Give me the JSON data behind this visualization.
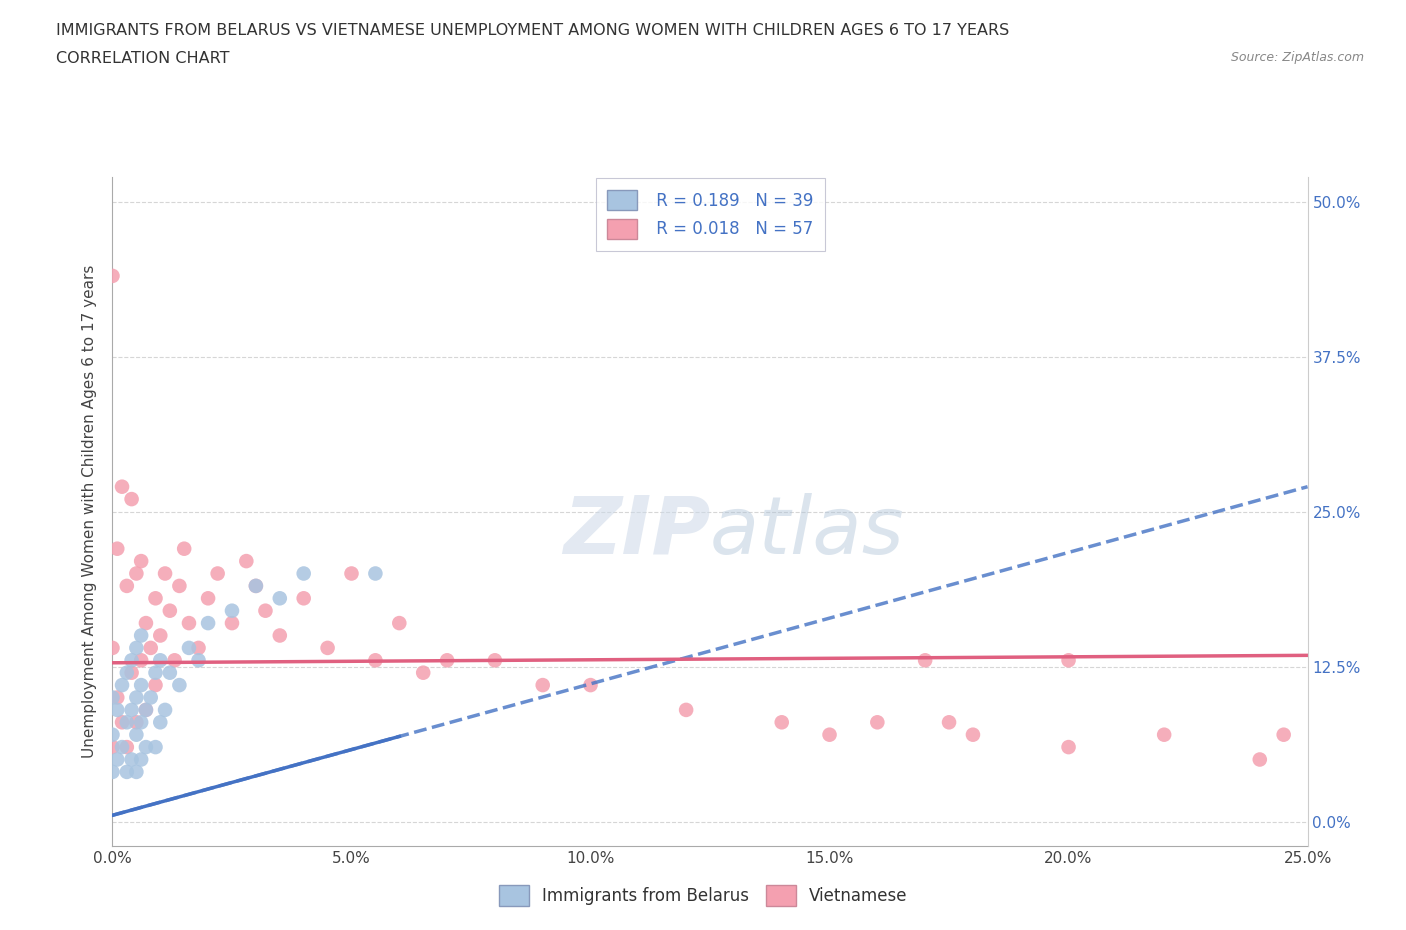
{
  "title_line1": "IMMIGRANTS FROM BELARUS VS VIETNAMESE UNEMPLOYMENT AMONG WOMEN WITH CHILDREN AGES 6 TO 17 YEARS",
  "title_line2": "CORRELATION CHART",
  "source_text": "Source: ZipAtlas.com",
  "ylabel": "Unemployment Among Women with Children Ages 6 to 17 years",
  "xlim": [
    0.0,
    0.25
  ],
  "ylim": [
    -0.02,
    0.52
  ],
  "yticks": [
    0.0,
    0.125,
    0.25,
    0.375,
    0.5
  ],
  "ytick_labels": [
    "0.0%",
    "12.5%",
    "25.0%",
    "37.5%",
    "50.0%"
  ],
  "xticks": [
    0.0,
    0.05,
    0.1,
    0.15,
    0.2,
    0.25
  ],
  "xtick_labels": [
    "0.0%",
    "5.0%",
    "10.0%",
    "15.0%",
    "20.0%",
    "25.0%"
  ],
  "belarus_color": "#a8c4e0",
  "vietnamese_color": "#f4a0b0",
  "belarus_line_color": "#4472c4",
  "vietnamese_line_color": "#e06080",
  "R_belarus": 0.189,
  "N_belarus": 39,
  "R_vietnamese": 0.018,
  "N_vietnamese": 57,
  "belarus_trend_x": [
    0.0,
    0.25
  ],
  "belarus_trend_y": [
    0.005,
    0.27
  ],
  "vietnamese_trend_x": [
    0.0,
    0.25
  ],
  "vietnamese_trend_y": [
    0.128,
    0.134
  ],
  "belarus_scatter_x": [
    0.0,
    0.0,
    0.0,
    0.001,
    0.001,
    0.002,
    0.002,
    0.003,
    0.003,
    0.003,
    0.004,
    0.004,
    0.004,
    0.005,
    0.005,
    0.005,
    0.005,
    0.006,
    0.006,
    0.006,
    0.006,
    0.007,
    0.007,
    0.008,
    0.009,
    0.009,
    0.01,
    0.01,
    0.011,
    0.012,
    0.014,
    0.016,
    0.018,
    0.02,
    0.025,
    0.03,
    0.035,
    0.04,
    0.055
  ],
  "belarus_scatter_y": [
    0.04,
    0.07,
    0.1,
    0.05,
    0.09,
    0.06,
    0.11,
    0.04,
    0.08,
    0.12,
    0.05,
    0.09,
    0.13,
    0.04,
    0.07,
    0.1,
    0.14,
    0.05,
    0.08,
    0.11,
    0.15,
    0.06,
    0.09,
    0.1,
    0.06,
    0.12,
    0.08,
    0.13,
    0.09,
    0.12,
    0.11,
    0.14,
    0.13,
    0.16,
    0.17,
    0.19,
    0.18,
    0.2,
    0.2
  ],
  "vietnamese_scatter_x": [
    0.0,
    0.0,
    0.0,
    0.001,
    0.001,
    0.002,
    0.002,
    0.003,
    0.003,
    0.004,
    0.004,
    0.005,
    0.005,
    0.006,
    0.006,
    0.007,
    0.007,
    0.008,
    0.009,
    0.009,
    0.01,
    0.011,
    0.012,
    0.013,
    0.014,
    0.015,
    0.016,
    0.018,
    0.02,
    0.022,
    0.025,
    0.028,
    0.03,
    0.032,
    0.035,
    0.04,
    0.045,
    0.05,
    0.055,
    0.06,
    0.065,
    0.07,
    0.08,
    0.09,
    0.1,
    0.12,
    0.14,
    0.15,
    0.16,
    0.17,
    0.18,
    0.2,
    0.22,
    0.24,
    0.245,
    0.2,
    0.175
  ],
  "vietnamese_scatter_y": [
    0.44,
    0.14,
    0.06,
    0.1,
    0.22,
    0.08,
    0.27,
    0.06,
    0.19,
    0.12,
    0.26,
    0.08,
    0.2,
    0.13,
    0.21,
    0.09,
    0.16,
    0.14,
    0.11,
    0.18,
    0.15,
    0.2,
    0.17,
    0.13,
    0.19,
    0.22,
    0.16,
    0.14,
    0.18,
    0.2,
    0.16,
    0.21,
    0.19,
    0.17,
    0.15,
    0.18,
    0.14,
    0.2,
    0.13,
    0.16,
    0.12,
    0.13,
    0.13,
    0.11,
    0.11,
    0.09,
    0.08,
    0.07,
    0.08,
    0.13,
    0.07,
    0.06,
    0.07,
    0.05,
    0.07,
    0.13,
    0.08
  ]
}
